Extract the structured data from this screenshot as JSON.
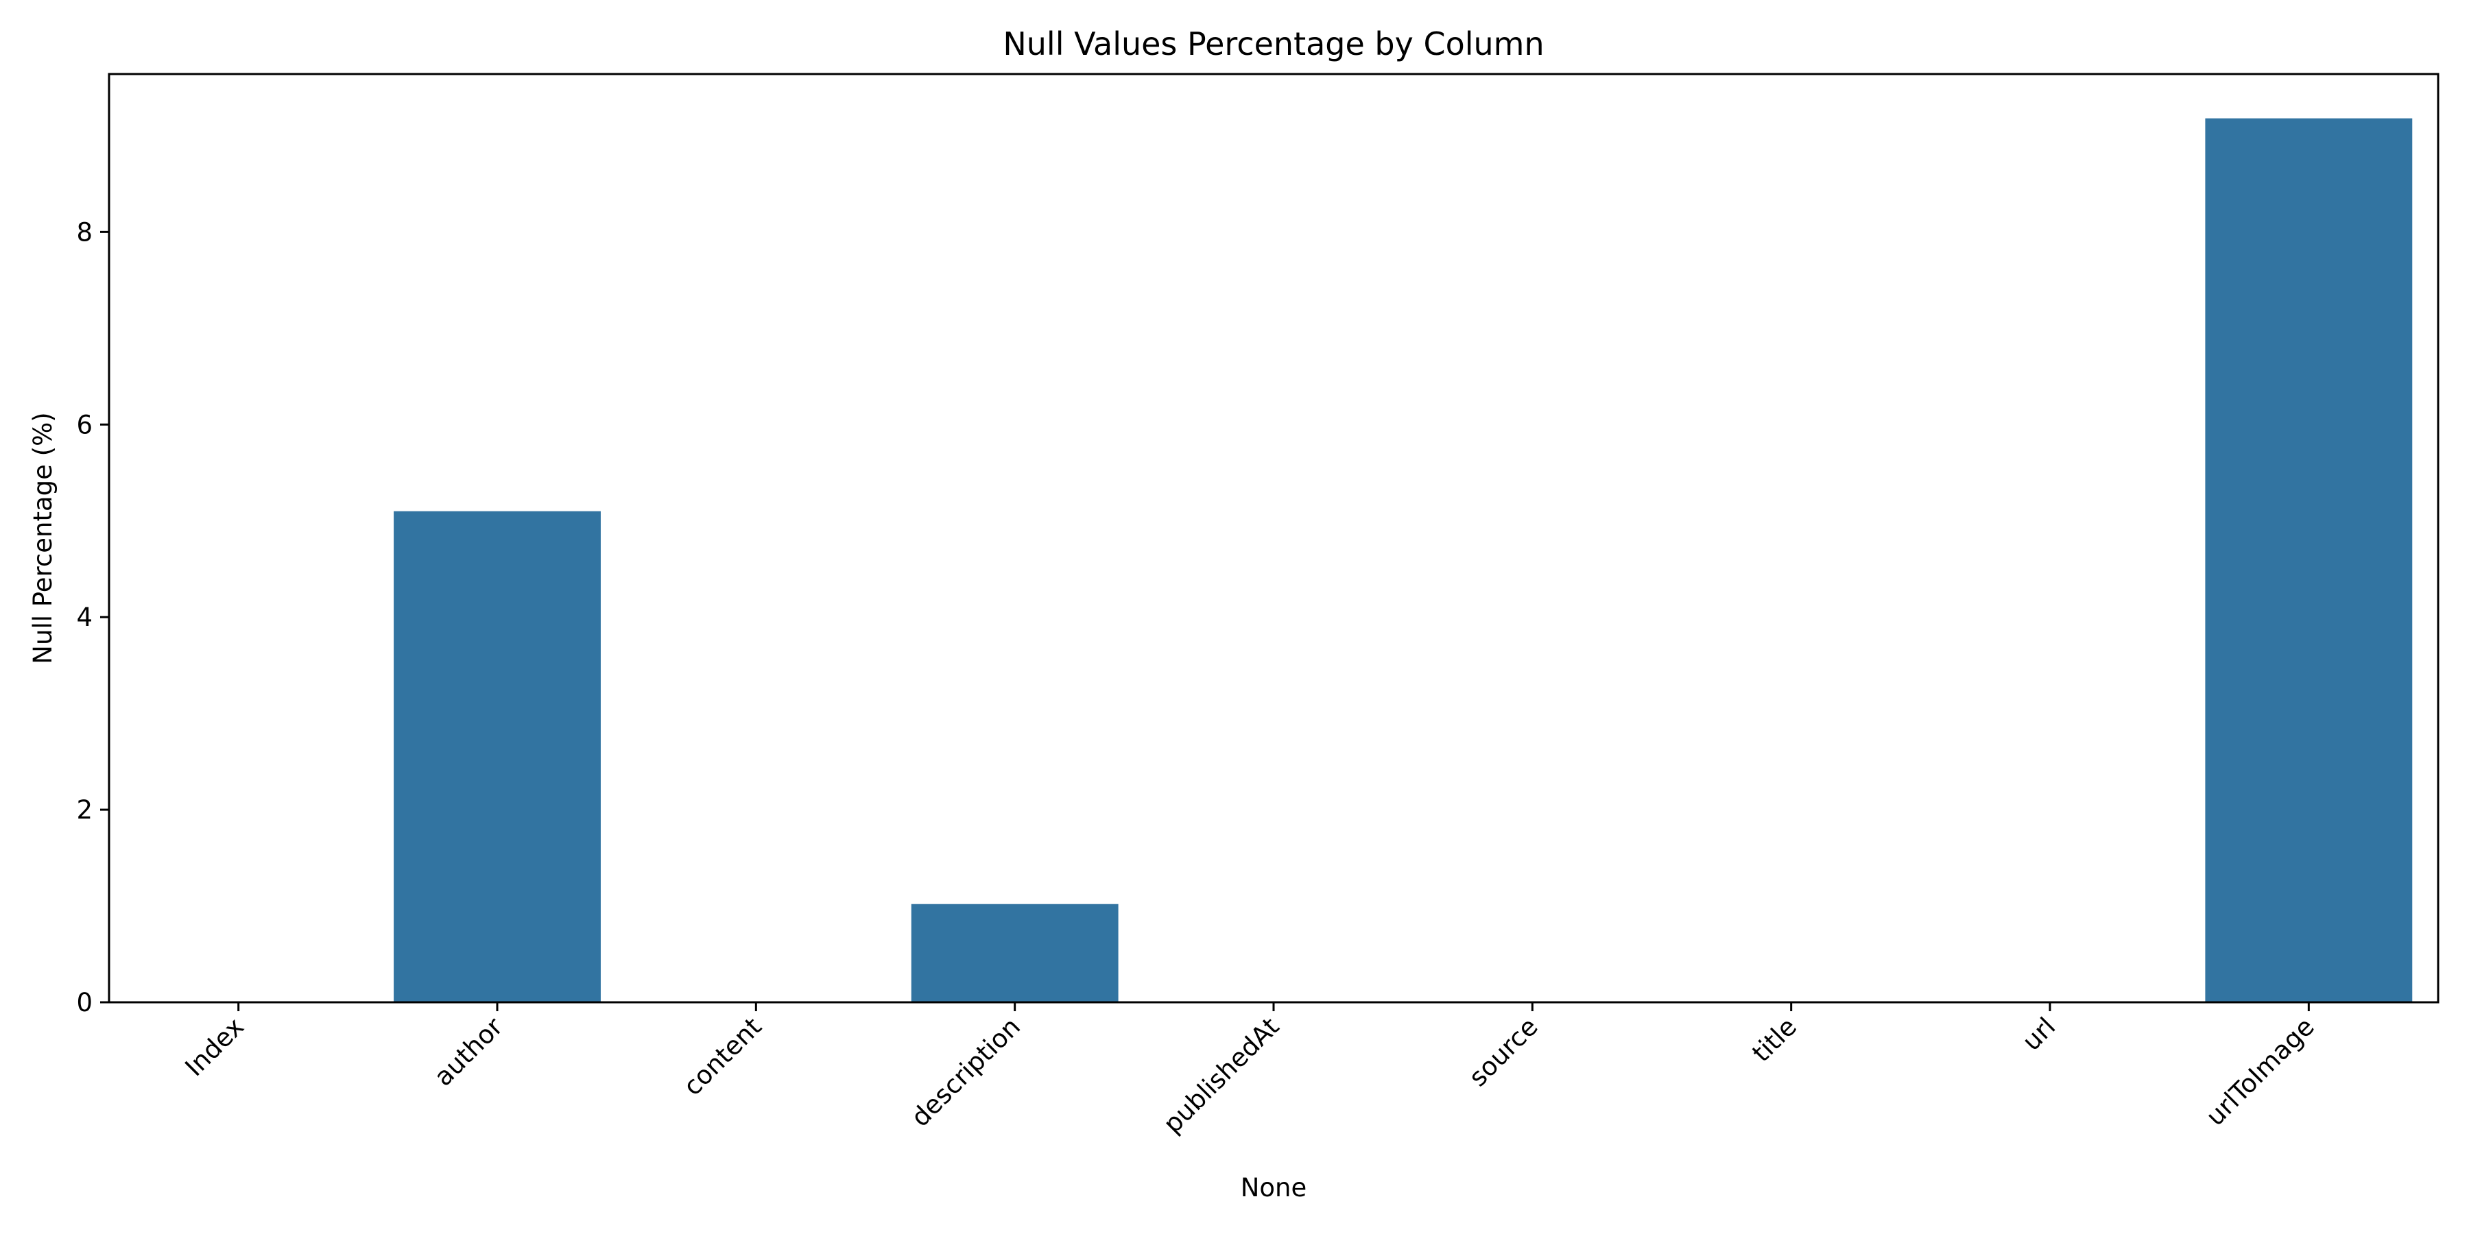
{
  "chart_data": {
    "type": "bar",
    "title": "Null Values Percentage by Column",
    "xlabel": "None",
    "ylabel": "Null Percentage (%)",
    "categories": [
      "Index",
      "author",
      "content",
      "description",
      "publishedAt",
      "source",
      "title",
      "url",
      "urlToImage"
    ],
    "values": [
      0,
      5.1,
      0,
      1.02,
      0,
      0,
      0,
      0,
      9.18
    ],
    "ylim": [
      0,
      9.64
    ],
    "yticks": [
      0,
      2,
      4,
      6,
      8
    ],
    "grid": false,
    "bar_color": "#3274a1"
  }
}
